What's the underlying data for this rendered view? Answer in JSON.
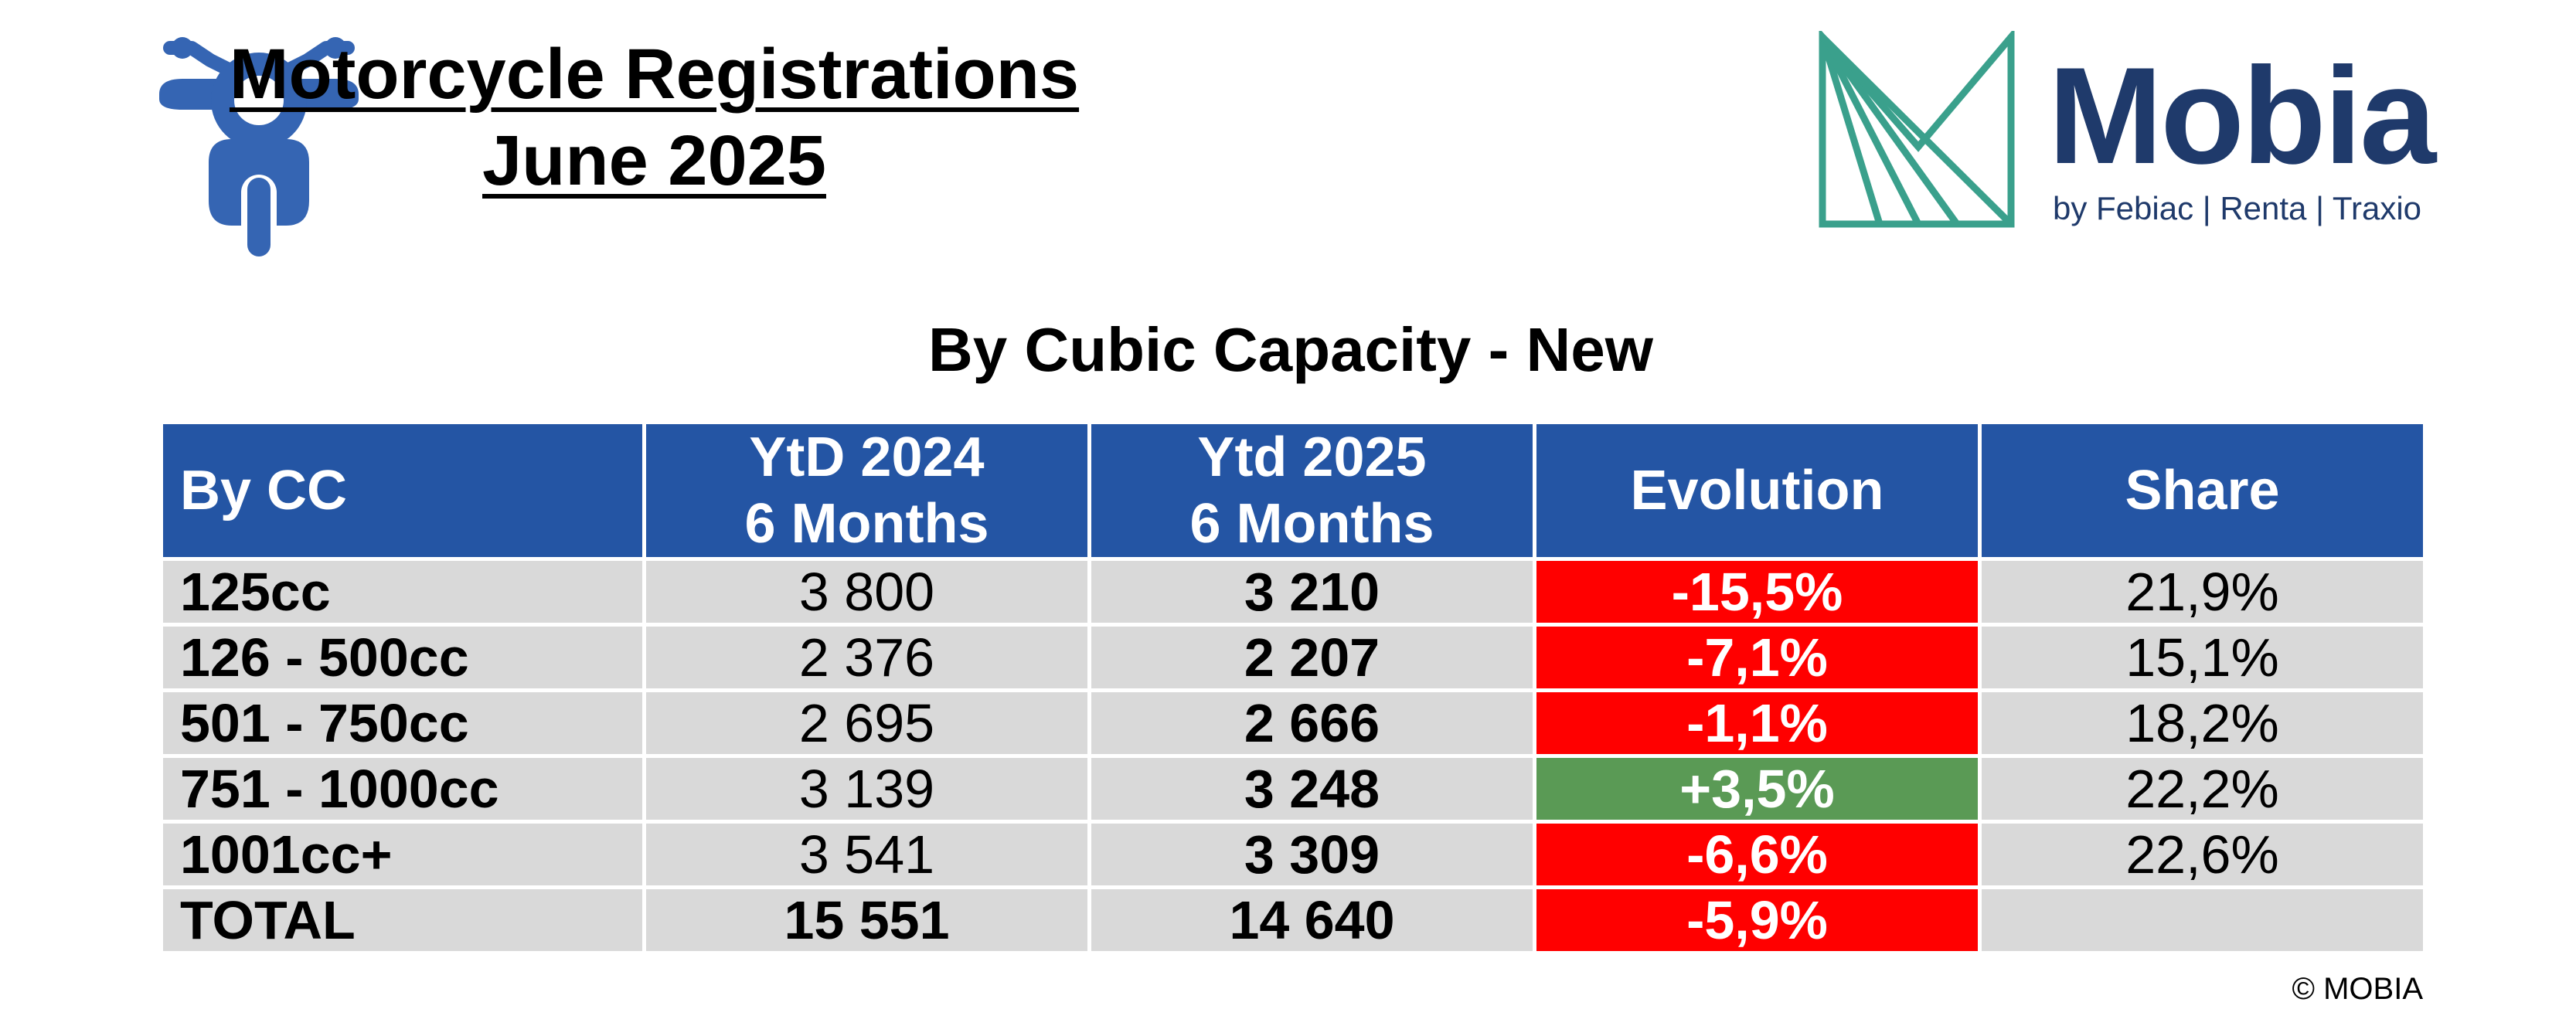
{
  "header": {
    "title_line1": "Motorcycle Registrations",
    "title_line2": "June 2025",
    "logo_name": "Mobia",
    "logo_tagline": "by Febiac | Renta | Traxio",
    "icon": "motorcycle-icon"
  },
  "subtitle": "By Cubic Capacity - New",
  "table": {
    "headers": [
      {
        "line1": "By CC",
        "line2": ""
      },
      {
        "line1": "YtD 2024",
        "line2": "6 Months"
      },
      {
        "line1": "Ytd 2025",
        "line2": "6 Months"
      },
      {
        "line1": "Evolution",
        "line2": ""
      },
      {
        "line1": "Share",
        "line2": ""
      }
    ],
    "rows": [
      {
        "category": "125cc",
        "ytd_2024": "3 800",
        "ytd_2025": "3 210",
        "evolution": "-15,5%",
        "share": "21,9%"
      },
      {
        "category": "126 - 500cc",
        "ytd_2024": "2 376",
        "ytd_2025": "2 207",
        "evolution": "-7,1%",
        "share": "15,1%"
      },
      {
        "category": "501 - 750cc",
        "ytd_2024": "2 695",
        "ytd_2025": "2 666",
        "evolution": "-1,1%",
        "share": "18,2%"
      },
      {
        "category": "751 - 1000cc",
        "ytd_2024": "3 139",
        "ytd_2025": "3 248",
        "evolution": "+3,5%",
        "share": "22,2%"
      },
      {
        "category": "1001cc+",
        "ytd_2024": "3 541",
        "ytd_2025": "3 309",
        "evolution": "-6,6%",
        "share": "22,6%"
      },
      {
        "category": "TOTAL",
        "ytd_2024": "15 551",
        "ytd_2025": "14 640",
        "evolution": "-5,9%",
        "share": ""
      }
    ]
  },
  "footer": "© MOBIA",
  "colors": {
    "header_bg": "#2455a4",
    "cell_bg": "#d9d9d9",
    "negative": "#ff0000",
    "positive": "#5a9a55",
    "brand_navy": "#1f3a6b",
    "brand_teal": "#3aa08c",
    "icon_blue": "#3565b3"
  }
}
